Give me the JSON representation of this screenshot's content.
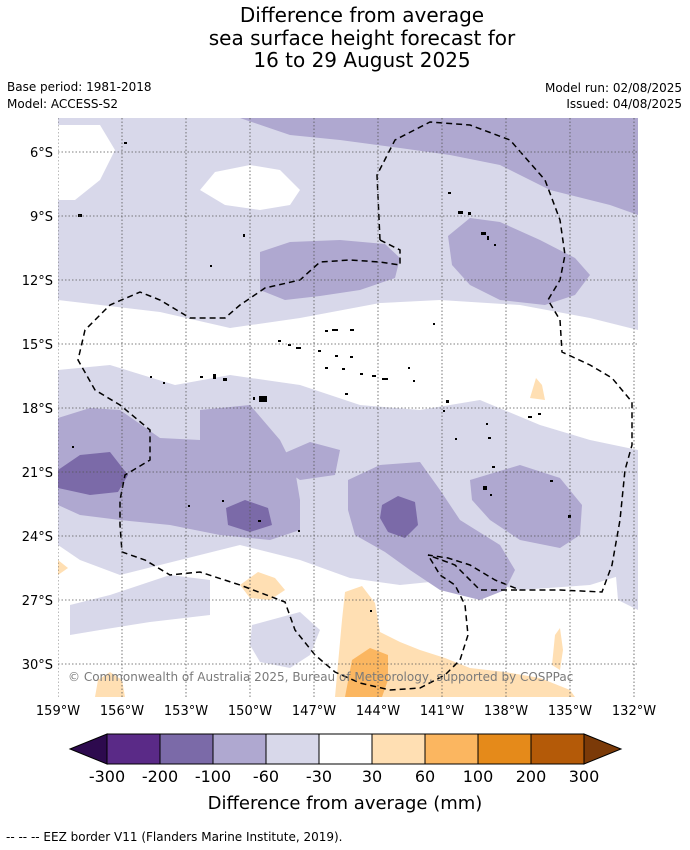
{
  "title": {
    "line1": "Difference from average",
    "line2": "sea surface height forecast for",
    "line3": "16 to 29 August 2025"
  },
  "meta": {
    "base_period": "Base period: 1981-2018",
    "model": "Model: ACCESS-S2",
    "model_run": "Model run: 02/08/2025",
    "issued": "Issued: 04/08/2025"
  },
  "map": {
    "lat_labels": [
      "6°S",
      "9°S",
      "12°S",
      "15°S",
      "18°S",
      "21°S",
      "24°S",
      "27°S",
      "30°S"
    ],
    "lon_labels": [
      "159°W",
      "156°W",
      "153°W",
      "150°W",
      "147°W",
      "144°W",
      "141°W",
      "138°W",
      "135°W",
      "132°W"
    ],
    "copyright": "© Commonwealth of Australia 2025, Bureau of Meteorology, supported by COSPPac"
  },
  "colorbar": {
    "labels": [
      "-300",
      "-200",
      "-100",
      "-60",
      "-30",
      "30",
      "60",
      "100",
      "200",
      "300"
    ],
    "colors": {
      "under": "#2d0a4e",
      "b1": "#5a2a87",
      "b2": "#7b6aa8",
      "b3": "#afa8d0",
      "b4": "#d8d8ea",
      "b5": "#ffffff",
      "b6": "#ffdfb3",
      "b7": "#fbb660",
      "b8": "#e58a1a",
      "b9": "#b45a08",
      "over": "#7b3a08"
    },
    "label": "Difference from average (mm)"
  },
  "footer": "--  --  -- EEZ border V11 (Flanders Marine Institute, 2019)."
}
